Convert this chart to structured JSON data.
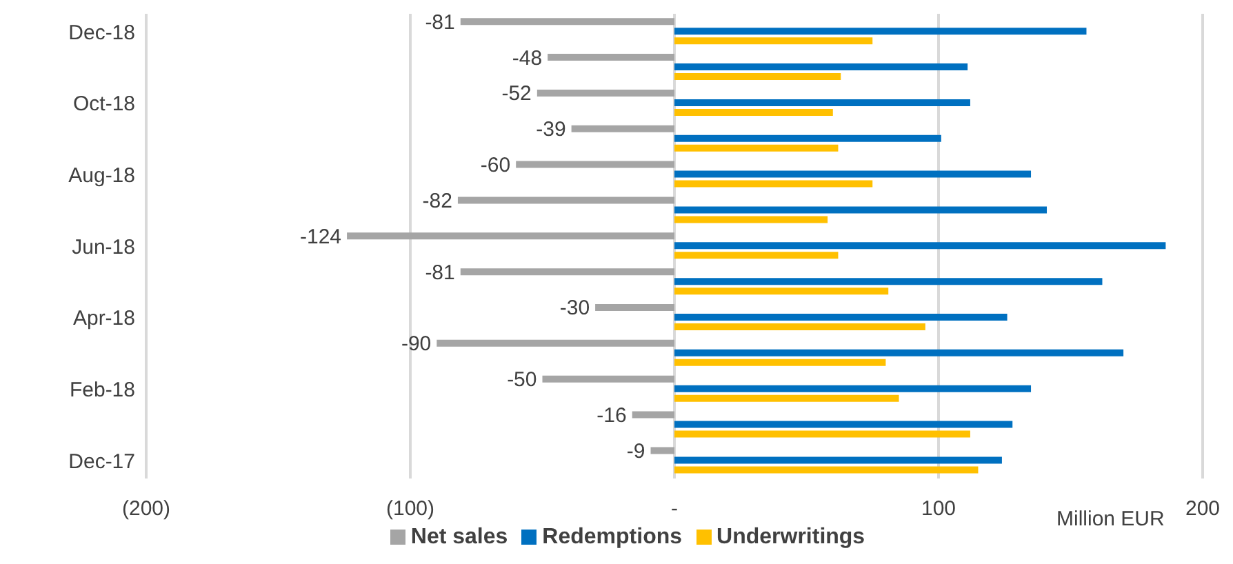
{
  "chart_data": {
    "type": "bar",
    "orientation": "horizontal",
    "xlabel": "Million EUR",
    "categories": [
      "Dec-18",
      null,
      "Oct-18",
      null,
      "Aug-18",
      null,
      "Jun-18",
      null,
      "Apr-18",
      null,
      "Feb-18",
      null,
      "Dec-17"
    ],
    "series": [
      {
        "name": "Net sales",
        "color": "#a5a5a5",
        "values": [
          -81,
          -48,
          -52,
          -39,
          -60,
          -82,
          -124,
          -81,
          -30,
          -90,
          -50,
          -16,
          -9
        ],
        "value_labels": [
          "-81",
          "-48",
          "-52",
          "-39",
          "-60",
          "-82",
          "-124",
          "-81",
          "-30",
          "-90",
          "-50",
          "-16",
          "-9"
        ]
      },
      {
        "name": "Redemptions",
        "color": "#0070c0",
        "values": [
          156,
          111,
          112,
          101,
          135,
          141,
          186,
          162,
          126,
          170,
          135,
          128,
          124
        ]
      },
      {
        "name": "Underwritings",
        "color": "#ffc000",
        "values": [
          75,
          63,
          60,
          62,
          75,
          58,
          62,
          81,
          95,
          80,
          85,
          112,
          115
        ]
      }
    ],
    "xlim": [
      -200,
      200
    ],
    "xticks": [
      {
        "value": -200,
        "label": "(200)"
      },
      {
        "value": -100,
        "label": "(100)"
      },
      {
        "value": 0,
        "label": "-"
      },
      100,
      200
    ],
    "grid": "x",
    "legend": "bottom"
  }
}
